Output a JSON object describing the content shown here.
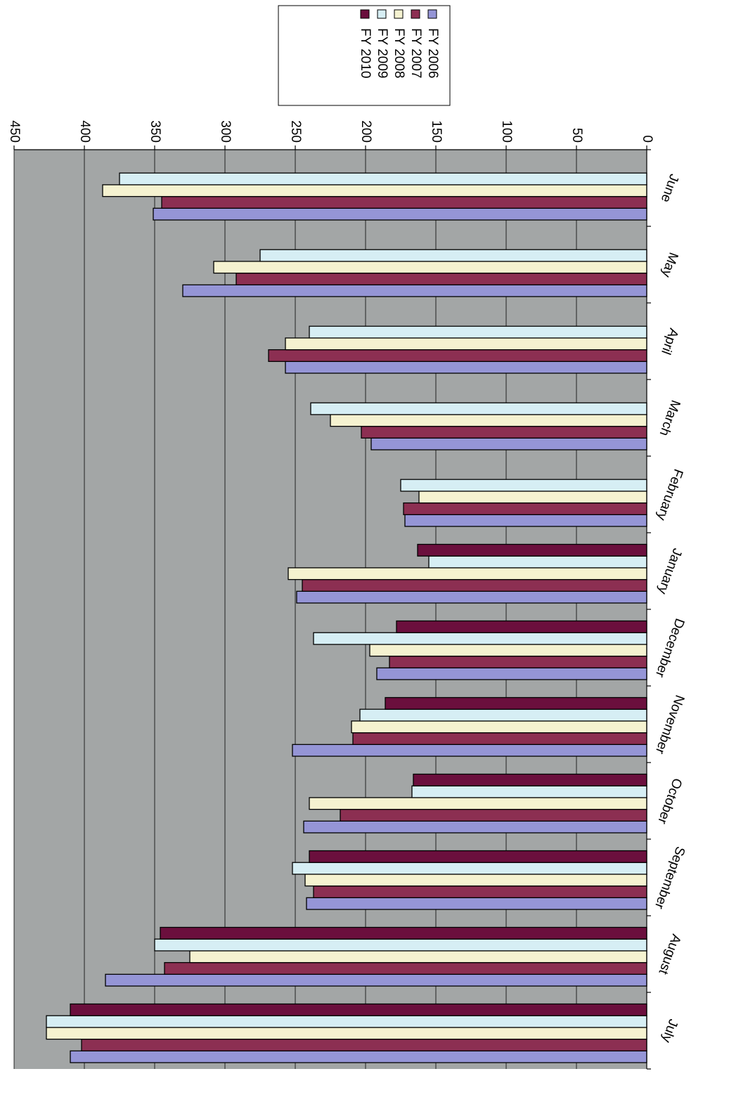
{
  "chart_data": {
    "type": "bar",
    "orientation": "horizontal",
    "categories": [
      "July",
      "August",
      "September",
      "October",
      "November",
      "December",
      "January",
      "February",
      "March",
      "April",
      "May",
      "June"
    ],
    "series": [
      {
        "name": "FY 2006",
        "color": "#9595d6",
        "values": [
          410,
          385,
          242,
          244,
          252,
          192,
          249,
          172,
          196,
          257,
          330,
          351
        ]
      },
      {
        "name": "FY 2007",
        "color": "#8c2f52",
        "values": [
          402,
          343,
          237,
          218,
          209,
          183,
          245,
          173,
          203,
          269,
          292,
          345
        ]
      },
      {
        "name": "FY 2008",
        "color": "#f5f2d0",
        "values": [
          427,
          325,
          243,
          240,
          210,
          197,
          255,
          162,
          225,
          257,
          308,
          387
        ]
      },
      {
        "name": "FY 2009",
        "color": "#d6eef4",
        "values": [
          427,
          350,
          252,
          167,
          204,
          237,
          155,
          175,
          239,
          240,
          275,
          375
        ]
      },
      {
        "name": "FY 2010",
        "color": "#6b0f3d",
        "values": [
          410,
          346,
          240,
          166,
          186,
          178,
          163,
          null,
          null,
          null,
          null,
          null
        ]
      }
    ],
    "ylim": [
      0,
      450
    ],
    "ticks": [
      "0",
      "50",
      "100",
      "150",
      "200",
      "250",
      "300",
      "350",
      "400",
      "450"
    ],
    "grid": true,
    "plot_background": "#a3a6a6",
    "legend_position": "top",
    "rotation": "page rotated 180 degrees"
  }
}
